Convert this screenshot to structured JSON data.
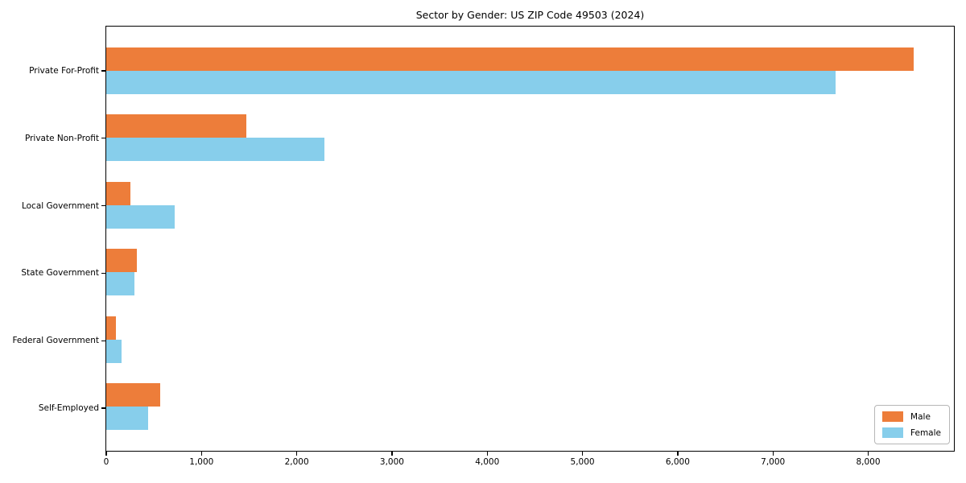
{
  "chart_data": {
    "type": "bar",
    "orientation": "horizontal",
    "title": "Sector by Gender: US ZIP Code 49503 (2024)",
    "categories": [
      "Private For-Profit",
      "Private Non-Profit",
      "Local Government",
      "State Government",
      "Federal Government",
      "Self-Employed"
    ],
    "series": [
      {
        "name": "Male",
        "color": "#ED7D3A",
        "values": [
          8480,
          1470,
          250,
          320,
          100,
          570
        ]
      },
      {
        "name": "Female",
        "color": "#87CEEB",
        "values": [
          7660,
          2290,
          720,
          300,
          160,
          440
        ]
      }
    ],
    "xlabel": "",
    "ylabel": "",
    "xlim": [
      0,
      8900
    ],
    "x_ticks": [
      {
        "value": 0,
        "label": "0"
      },
      {
        "value": 1000,
        "label": "1,000"
      },
      {
        "value": 2000,
        "label": "2,000"
      },
      {
        "value": 3000,
        "label": "3,000"
      },
      {
        "value": 4000,
        "label": "4,000"
      },
      {
        "value": 5000,
        "label": "5,000"
      },
      {
        "value": 6000,
        "label": "6,000"
      },
      {
        "value": 7000,
        "label": "7,000"
      },
      {
        "value": 8000,
        "label": "8,000"
      }
    ],
    "grid": false,
    "legend_position": "lower right",
    "colors": {
      "male": "#ED7D3A",
      "female": "#87CEEB",
      "spine": "#000000",
      "background": "#ffffff"
    }
  }
}
